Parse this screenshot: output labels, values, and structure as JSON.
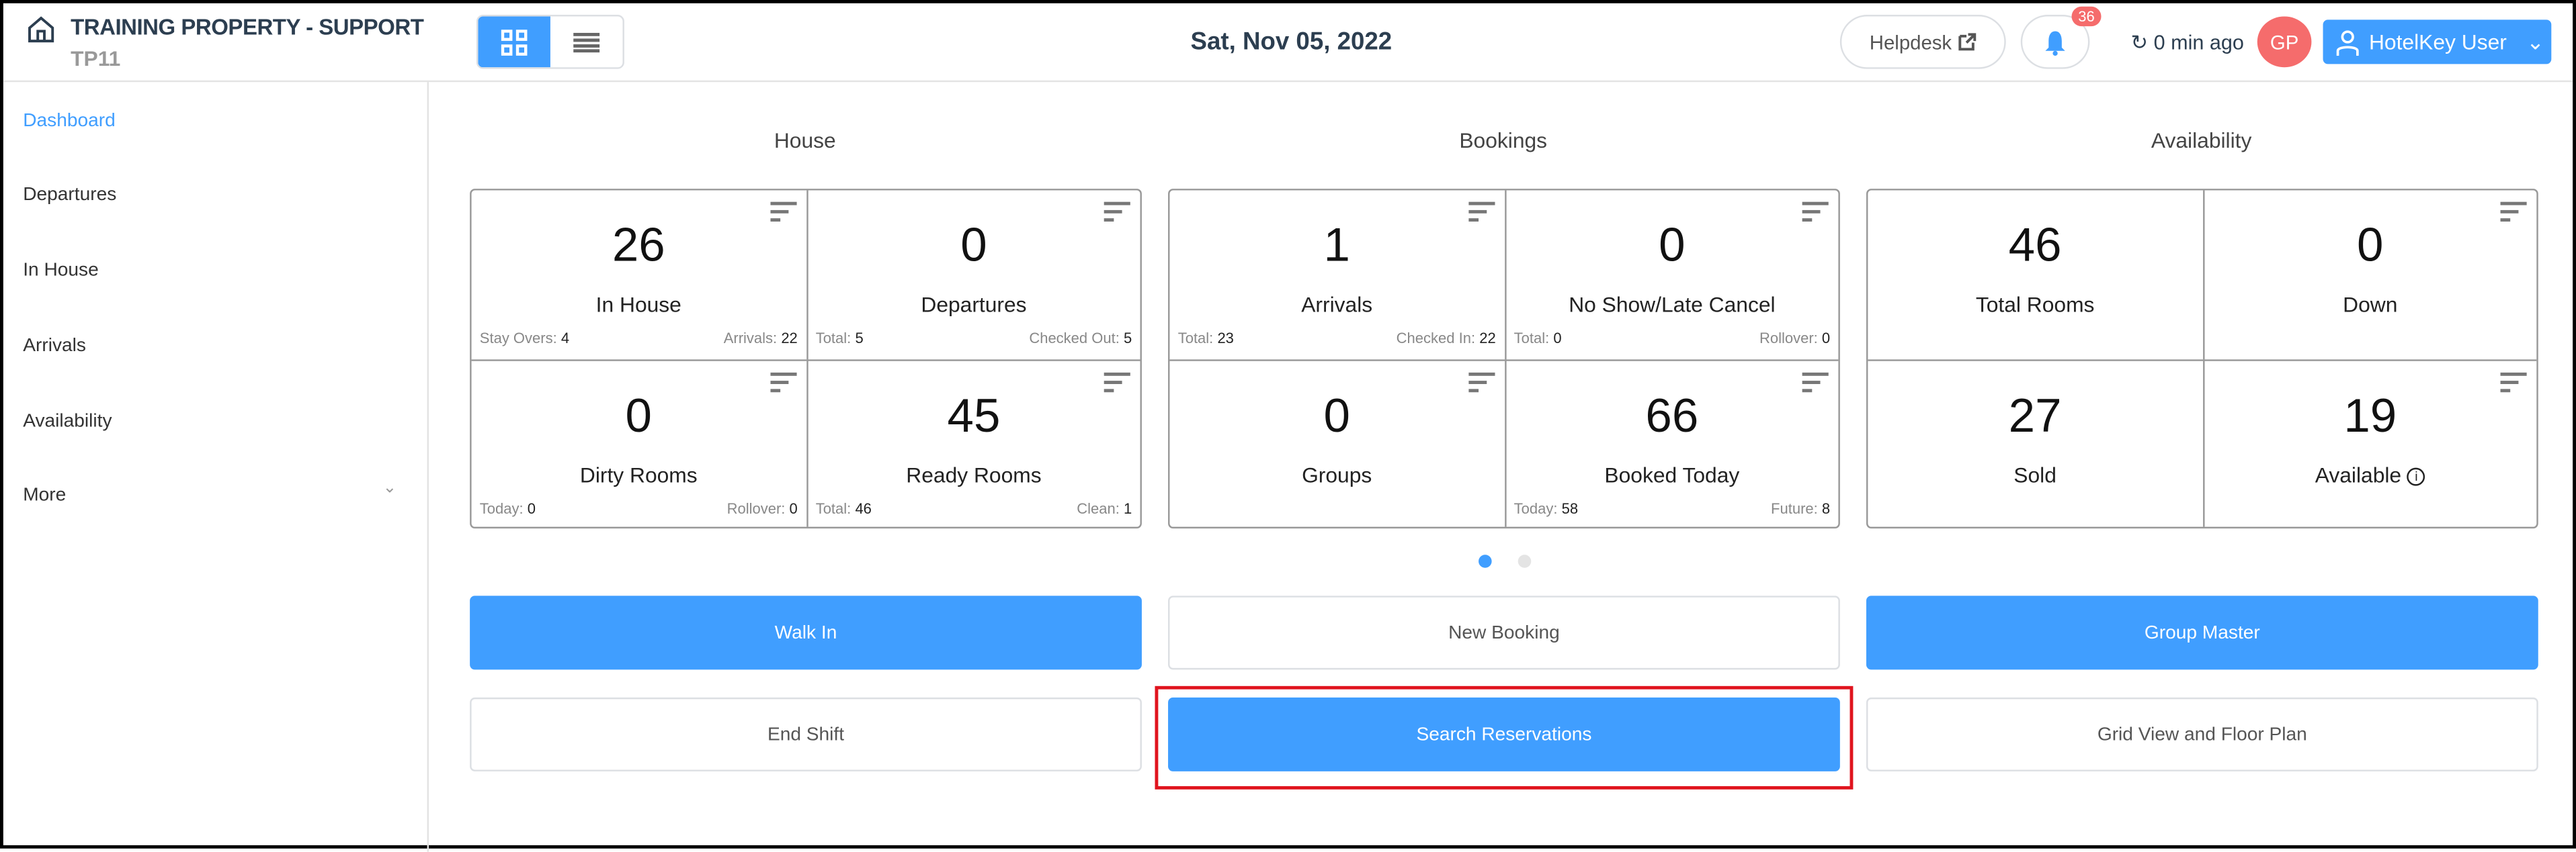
{
  "header": {
    "property_name": "TRAINING PROPERTY - SUPPORT",
    "property_code": "TP11",
    "date": "Sat, Nov 05, 2022",
    "helpdesk_label": "Helpdesk",
    "notification_count": "36",
    "refresh_text": "0 min ago",
    "avatar_initials": "GP",
    "user_name": "HotelKey User"
  },
  "sidebar": {
    "items": [
      {
        "label": "Dashboard",
        "active": true
      },
      {
        "label": "Departures"
      },
      {
        "label": "In House"
      },
      {
        "label": "Arrivals"
      },
      {
        "label": "Availability"
      },
      {
        "label": "More"
      }
    ]
  },
  "sections": [
    {
      "title": "House",
      "cards": [
        {
          "value": "26",
          "label": "In House",
          "left_label": "Stay Overs:",
          "left_value": "4",
          "right_label": "Arrivals:",
          "right_value": "22"
        },
        {
          "value": "0",
          "label": "Departures",
          "left_label": "Total:",
          "left_value": "5",
          "right_label": "Checked Out:",
          "right_value": "5"
        },
        {
          "value": "0",
          "label": "Dirty Rooms",
          "left_label": "Today:",
          "left_value": "0",
          "right_label": "Rollover:",
          "right_value": "0"
        },
        {
          "value": "45",
          "label": "Ready Rooms",
          "left_label": "Total:",
          "left_value": "46",
          "right_label": "Clean:",
          "right_value": "1"
        }
      ]
    },
    {
      "title": "Bookings",
      "cards": [
        {
          "value": "1",
          "label": "Arrivals",
          "left_label": "Total:",
          "left_value": "23",
          "right_label": "Checked In:",
          "right_value": "22"
        },
        {
          "value": "0",
          "label": "No Show/Late Cancel",
          "left_label": "Total:",
          "left_value": "0",
          "right_label": "Rollover:",
          "right_value": "0"
        },
        {
          "value": "0",
          "label": "Groups"
        },
        {
          "value": "66",
          "label": "Booked Today",
          "left_label": "Today:",
          "left_value": "58",
          "right_label": "Future:",
          "right_value": "8"
        }
      ]
    },
    {
      "title": "Availability",
      "cards": [
        {
          "value": "46",
          "label": "Total Rooms"
        },
        {
          "value": "0",
          "label": "Down"
        },
        {
          "value": "27",
          "label": "Sold"
        },
        {
          "value": "19",
          "label": "Available"
        }
      ]
    }
  ],
  "carousel": {
    "pages": 2,
    "active": 1
  },
  "actions": {
    "walk_in": "Walk In",
    "new_booking": "New Booking",
    "group_master": "Group Master",
    "end_shift": "End Shift",
    "search_reservations": "Search Reservations",
    "grid_view": "Grid View and Floor Plan"
  },
  "colors": {
    "primary": "#409eff",
    "danger": "#f56c6c",
    "highlight": "#e0141e"
  }
}
